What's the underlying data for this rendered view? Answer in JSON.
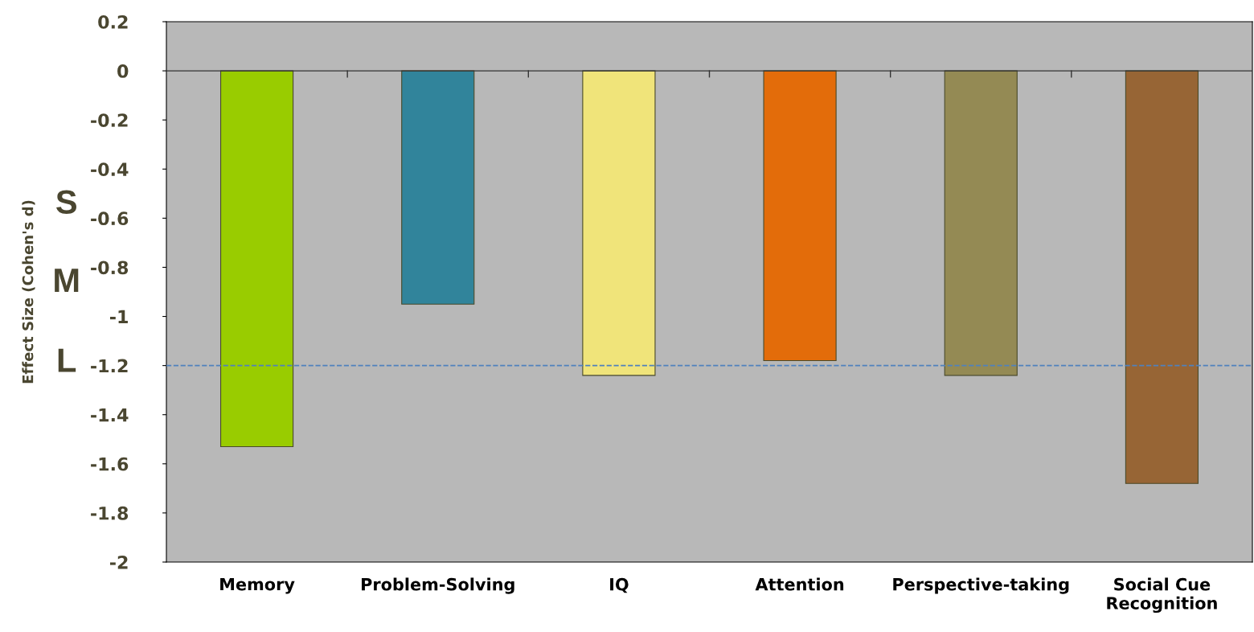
{
  "chart_data": {
    "type": "bar",
    "ylabel": "Effect Size (Cohen's d)",
    "categories": [
      "Memory",
      "Problem-Solving",
      "IQ",
      "Attention",
      "Perspective-taking",
      "Social Cue\nRecognition"
    ],
    "values": [
      -1.53,
      -0.95,
      -1.24,
      -1.18,
      -1.24,
      -1.68
    ],
    "colors": [
      "#99cc00",
      "#31849b",
      "#f0e47a",
      "#e36c0a",
      "#948a54",
      "#976535"
    ],
    "ylim": [
      -2,
      0.2
    ],
    "yticks": [
      0.2,
      0,
      -0.2,
      -0.4,
      -0.6,
      -0.8,
      -1,
      -1.2,
      -1.4,
      -1.6,
      -1.8,
      -2
    ],
    "ref_lines": [
      {
        "axis": "y",
        "value": -1.2,
        "color": "#4f81bd",
        "line_style": "dashed"
      }
    ],
    "annotations": [
      "S",
      "M",
      "L"
    ],
    "grid": false,
    "legend": false
  }
}
